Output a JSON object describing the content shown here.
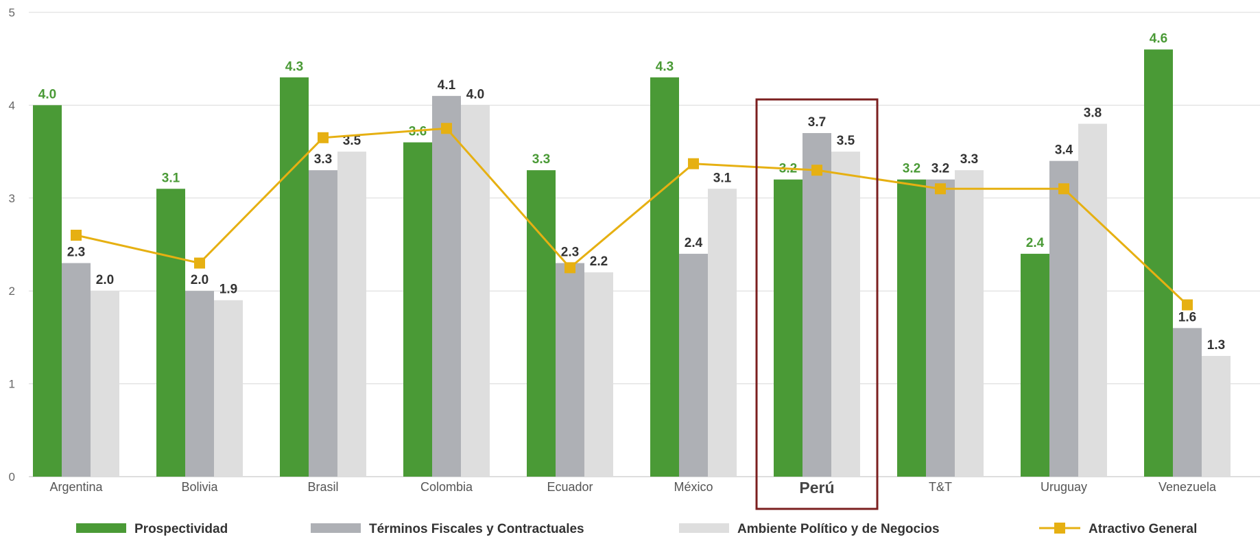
{
  "chart_data": {
    "type": "bar",
    "categories": [
      "Argentina",
      "Bolivia",
      "Brasil",
      "Colombia",
      "Ecuador",
      "México",
      "Perú",
      "T&T",
      "Uruguay",
      "Venezuela"
    ],
    "highlighted_category": "Perú",
    "series": [
      {
        "name": "Prospectividad",
        "kind": "bar",
        "color": "#4a9a36",
        "label_color": "#4a9a36",
        "values": [
          4.0,
          3.1,
          4.3,
          3.6,
          3.3,
          4.3,
          3.2,
          3.2,
          2.4,
          4.6
        ],
        "labels": [
          "4.0",
          "3.1",
          "4.3",
          "3.6",
          "3.3",
          "4.3",
          "3.2",
          "3.2",
          "2.4",
          "4.6"
        ]
      },
      {
        "name": "Términos Fiscales y Contractuales",
        "kind": "bar",
        "color": "#aeb0b5",
        "label_color": "#333333",
        "values": [
          2.3,
          2.0,
          3.3,
          4.1,
          2.3,
          2.4,
          3.7,
          3.2,
          3.4,
          1.6
        ],
        "labels": [
          "2.3",
          "2.0",
          "3.3",
          "4.1",
          "2.3",
          "2.4",
          "3.7",
          "3.2",
          "3.4",
          "1.6"
        ]
      },
      {
        "name": "Ambiente Político y de Negocios",
        "kind": "bar",
        "color": "#dedede",
        "label_color": "#333333",
        "values": [
          2.0,
          1.9,
          3.5,
          4.0,
          2.2,
          3.1,
          3.5,
          3.3,
          3.8,
          1.3
        ],
        "labels": [
          "2.0",
          "1.9",
          "3.5",
          "4.0",
          "2.2",
          "3.1",
          "3.5",
          "3.3",
          "3.8",
          "1.3"
        ]
      },
      {
        "name": "Atractivo General",
        "kind": "line",
        "color": "#e6b012",
        "values": [
          2.6,
          2.3,
          3.65,
          3.75,
          2.25,
          3.37,
          3.3,
          3.1,
          3.1,
          1.85
        ]
      }
    ],
    "xlabel": "",
    "ylabel": "",
    "ylim": [
      0,
      5
    ],
    "yticks": [
      "0",
      "1",
      "2",
      "3",
      "4",
      "5"
    ],
    "grid": true,
    "legend_position": "bottom",
    "highlight_color": "#7b1f1f"
  }
}
